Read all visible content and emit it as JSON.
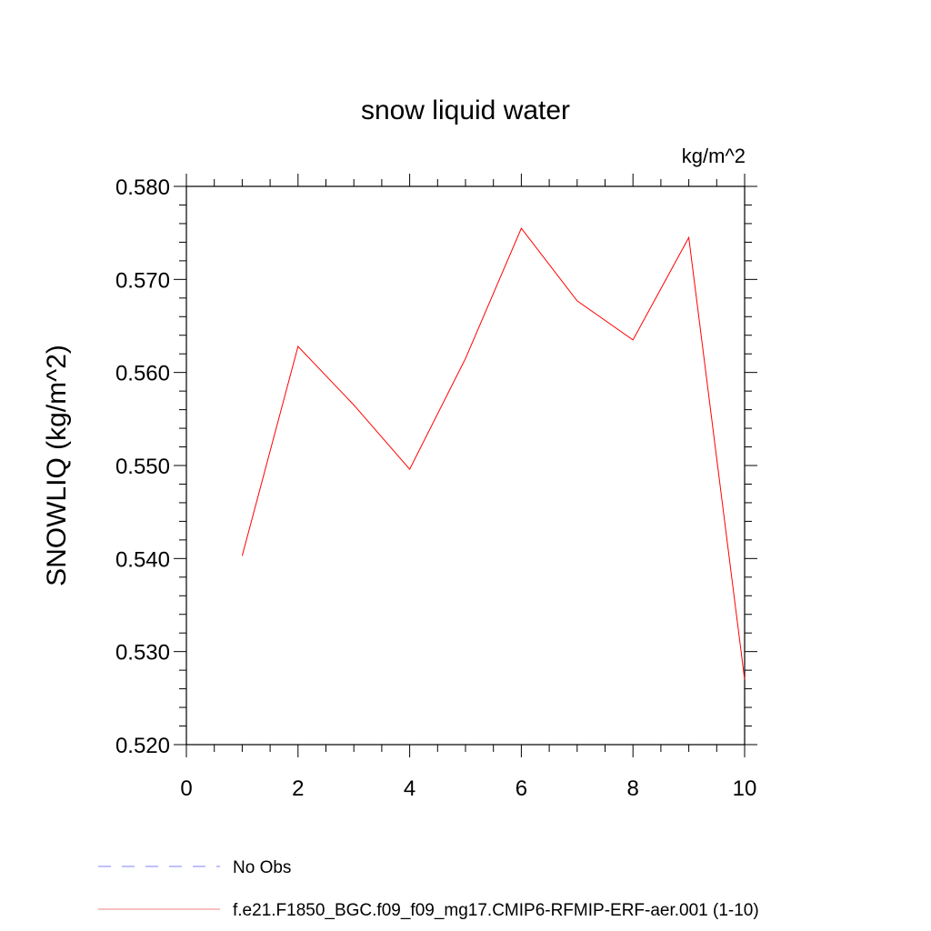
{
  "chart_data": {
    "type": "line",
    "title": "snow liquid water",
    "units_label": "kg/m^2",
    "xlabel": "",
    "ylabel": "SNOWLIQ  (kg/m^2)",
    "xlim": [
      0,
      10
    ],
    "ylim": [
      0.52,
      0.58
    ],
    "x_ticks": [
      0,
      2,
      4,
      6,
      8,
      10
    ],
    "x_tick_labels": [
      "0",
      "2",
      "4",
      "6",
      "8",
      "10"
    ],
    "y_ticks": [
      0.52,
      0.53,
      0.54,
      0.55,
      0.56,
      0.57,
      0.58
    ],
    "y_tick_labels": [
      "0.520",
      "0.530",
      "0.540",
      "0.550",
      "0.560",
      "0.570",
      "0.580"
    ],
    "grid": false,
    "legend_placement": "bottom-left",
    "series": [
      {
        "name": "f.e21.F1850_BGC.f09_f09_mg17.CMIP6-RFMIP-ERF-aer.001 (1-10)",
        "color": "#ff0000",
        "legend_color": "#f08080",
        "x": [
          1,
          2,
          3,
          4,
          5,
          6,
          7,
          8,
          9,
          10
        ],
        "values": [
          0.5403,
          0.5628,
          0.5565,
          0.5496,
          0.5615,
          0.5755,
          0.5677,
          0.5635,
          0.5745,
          0.527
        ]
      }
    ],
    "legend": [
      {
        "label": "No Obs",
        "color": "#8080ff",
        "style": "dashed"
      },
      {
        "label": "f.e21.F1850_BGC.f09_f09_mg17.CMIP6-RFMIP-ERF-aer.001 (1-10)",
        "color": "#f08080",
        "style": "solid"
      }
    ]
  }
}
